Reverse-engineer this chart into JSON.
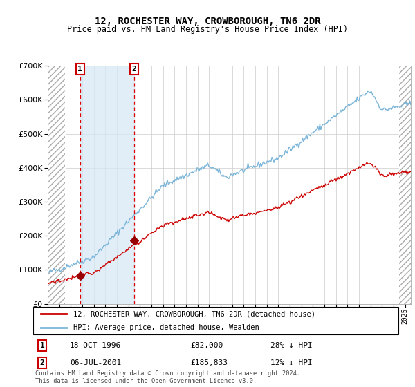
{
  "title": "12, ROCHESTER WAY, CROWBOROUGH, TN6 2DR",
  "subtitle": "Price paid vs. HM Land Registry's House Price Index (HPI)",
  "ylim": [
    0,
    700000
  ],
  "yticks": [
    0,
    100000,
    200000,
    300000,
    400000,
    500000,
    600000,
    700000
  ],
  "sale1": {
    "date_num": 1996.8,
    "price": 82000,
    "label": "1",
    "date_str": "18-OCT-1996",
    "price_str": "£82,000",
    "hpi_str": "28% ↓ HPI"
  },
  "sale2": {
    "date_num": 2001.5,
    "price": 185833,
    "label": "2",
    "date_str": "06-JUL-2001",
    "price_str": "£185,833",
    "hpi_str": "12% ↓ HPI"
  },
  "hpi_line_color": "#7ab5d9",
  "price_line_color": "#cc0000",
  "sale_marker_color": "#990000",
  "dashed_line_color": "#dd0000",
  "shaded_region_color": "#d5e8f5",
  "legend_line1": "12, ROCHESTER WAY, CROWBOROUGH, TN6 2DR (detached house)",
  "legend_line2": "HPI: Average price, detached house, Wealden",
  "footer": "Contains HM Land Registry data © Crown copyright and database right 2024.\nThis data is licensed under the Open Government Licence v3.0.",
  "xmin": 1994.0,
  "xmax": 2025.5,
  "hatch_left_end": 1995.5,
  "hatch_right_start": 2024.5
}
